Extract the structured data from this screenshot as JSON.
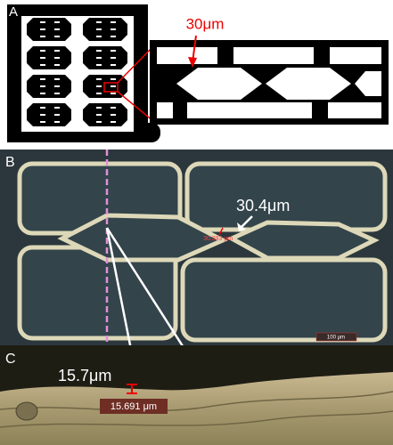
{
  "panel_a": {
    "label": "A",
    "annotation": "30μm"
  },
  "panel_b": {
    "label": "B",
    "measurement": "30.4μm",
    "measurement_tag": "30.393 μm",
    "scale_bar": "100 μm"
  },
  "panel_c": {
    "label": "C",
    "measurement": "15.7μm",
    "measurement_tag": "15.691 μm"
  }
}
